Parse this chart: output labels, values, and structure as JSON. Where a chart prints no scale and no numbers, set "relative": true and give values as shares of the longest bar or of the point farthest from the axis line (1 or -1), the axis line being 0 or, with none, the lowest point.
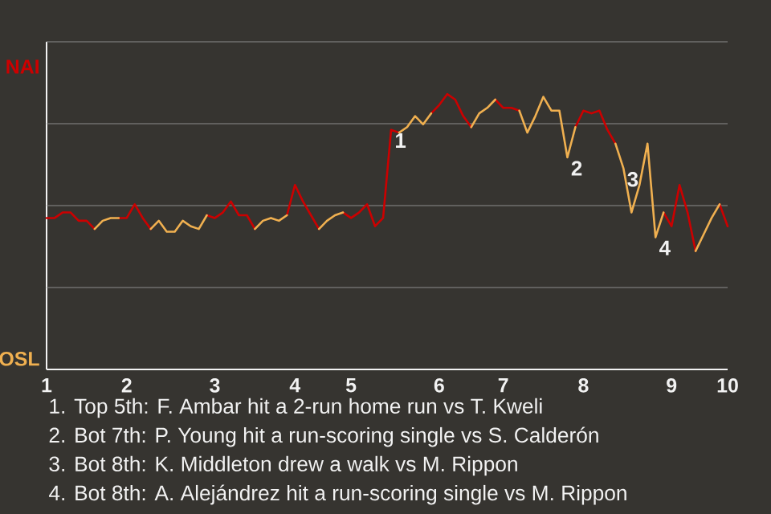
{
  "chart_data": {
    "type": "line",
    "relative": true,
    "categories": [
      "1",
      null,
      null,
      null,
      null,
      null,
      null,
      null,
      null,
      null,
      "2",
      null,
      null,
      null,
      null,
      null,
      null,
      null,
      null,
      null,
      null,
      "3",
      null,
      null,
      null,
      null,
      null,
      null,
      null,
      null,
      null,
      "4",
      null,
      null,
      null,
      null,
      null,
      null,
      "5",
      null,
      null,
      null,
      null,
      null,
      null,
      null,
      null,
      null,
      null,
      "6",
      null,
      null,
      null,
      null,
      null,
      null,
      null,
      "7",
      null,
      null,
      null,
      null,
      null,
      null,
      null,
      null,
      null,
      "8",
      null,
      null,
      null,
      null,
      null,
      null,
      null,
      null,
      null,
      null,
      "9",
      null,
      null,
      null,
      null,
      null,
      null,
      "10"
    ],
    "grid": "y",
    "series": [
      {
        "color": "#cc0000",
        "values": [
          0.55,
          0.55,
          0.57,
          0.57,
          0.54,
          0.54,
          0.51,
          null,
          null,
          0.55,
          0.55,
          0.6,
          0.55,
          0.51,
          null,
          null,
          null,
          null,
          null,
          null,
          0.56,
          0.55,
          0.57,
          0.61,
          0.56,
          0.56,
          0.51,
          null,
          null,
          null,
          0.56,
          0.67,
          0.61,
          0.56,
          0.51,
          null,
          null,
          0.57,
          0.55,
          0.57,
          0.6,
          0.52,
          0.55,
          0.87,
          0.86,
          null,
          null,
          null,
          0.93,
          0.96,
          1,
          0.98,
          0.92,
          0.88,
          null,
          null,
          0.98,
          0.95,
          0.95,
          0.94,
          null,
          null,
          null,
          null,
          null,
          null,
          0.88,
          0.94,
          0.93,
          0.94,
          0.87,
          0.82,
          null,
          null,
          null,
          null,
          null,
          0.57,
          0.52,
          0.67,
          0.57,
          0.43,
          null,
          null,
          0.6,
          0.52
        ]
      },
      {
        "color": "#f0b050",
        "values": [
          null,
          null,
          null,
          null,
          null,
          null,
          0.51,
          0.54,
          0.55,
          0.55,
          null,
          null,
          null,
          0.51,
          0.54,
          0.5,
          0.5,
          0.54,
          0.52,
          0.51,
          0.56,
          null,
          null,
          null,
          null,
          null,
          0.51,
          0.54,
          0.55,
          0.54,
          0.56,
          null,
          null,
          null,
          0.51,
          0.54,
          0.56,
          0.57,
          null,
          null,
          null,
          null,
          null,
          null,
          0.86,
          0.88,
          0.92,
          0.89,
          0.93,
          null,
          null,
          null,
          null,
          0.88,
          0.93,
          0.95,
          0.98,
          null,
          null,
          0.94,
          0.86,
          0.92,
          0.99,
          0.94,
          0.94,
          0.77,
          0.88,
          null,
          null,
          null,
          null,
          0.82,
          0.73,
          0.57,
          0.67,
          0.82,
          0.48,
          0.57,
          null,
          null,
          null,
          0.43,
          0.49,
          0.55,
          0.6,
          null
        ]
      }
    ],
    "annotations": [
      "NAI",
      "OSL",
      {
        "text": "1",
        "y": 0.87
      },
      {
        "text": "2",
        "y": 0.77
      },
      {
        "text": "3",
        "y": 0.73
      },
      {
        "text": "4",
        "y": 0.48
      },
      "1. Top 5th: F. Ambar hit a 2-run home run vs T. Kweli",
      "2. Bot 7th: P. Young hit a run-scoring single vs S. Calderón",
      "3. Bot 8th: K. Middleton drew a walk vs M. Rippon",
      "4. Bot 8th: A. Alejándrez hit a run-scoring single vs M. Rippon"
    ]
  }
}
